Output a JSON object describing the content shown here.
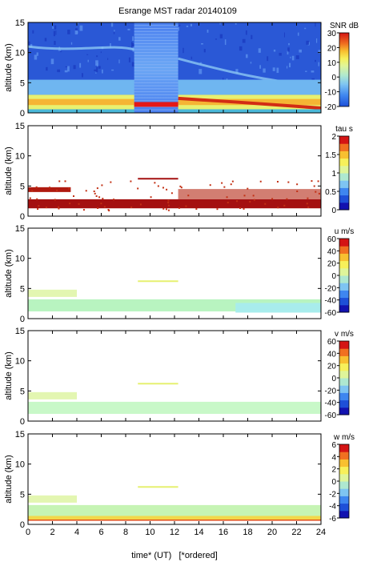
{
  "chart_data": {
    "title": "Esrange MST radar 20140109",
    "xlabel": "time* (UT)   [*ordered]",
    "xlim": [
      0,
      24
    ],
    "xticks": [
      0,
      2,
      4,
      6,
      8,
      10,
      12,
      14,
      16,
      18,
      20,
      22,
      24
    ],
    "panels": [
      {
        "type": "heatmap",
        "ylabel": "altitude (km)",
        "ylim": [
          0,
          15
        ],
        "yticks": [
          0,
          5,
          10,
          15
        ],
        "colorbar_label": "SNR dB",
        "colorbar_ticks": [
          -20,
          -10,
          0,
          10,
          20,
          30
        ],
        "colorbar_range": [
          -20,
          30
        ],
        "gap_interval_hours": [
          8.7,
          12.3
        ]
      },
      {
        "type": "heatmap",
        "ylabel": "altitude (km)",
        "ylim": [
          0,
          15
        ],
        "yticks": [
          0,
          5,
          10,
          15
        ],
        "colorbar_label": "tau s",
        "colorbar_ticks": [
          0,
          0.5,
          1,
          1.5,
          2
        ],
        "colorbar_range": [
          0,
          2
        ]
      },
      {
        "type": "heatmap",
        "ylabel": "altitude (km)",
        "ylim": [
          0,
          15
        ],
        "yticks": [
          0,
          5,
          10,
          15
        ],
        "colorbar_label": "u m/s",
        "colorbar_ticks": [
          -60,
          -40,
          -20,
          0,
          20,
          40,
          60
        ],
        "colorbar_range": [
          -60,
          60
        ]
      },
      {
        "type": "heatmap",
        "ylabel": "altitude (km)",
        "ylim": [
          0,
          15
        ],
        "yticks": [
          0,
          5,
          10,
          15
        ],
        "colorbar_label": "v m/s",
        "colorbar_ticks": [
          -60,
          -40,
          -20,
          0,
          20,
          40,
          60
        ],
        "colorbar_range": [
          -60,
          60
        ]
      },
      {
        "type": "heatmap",
        "ylabel": "altitude (km)",
        "ylim": [
          0,
          15
        ],
        "yticks": [
          0,
          5,
          10,
          15
        ],
        "colorbar_label": "w m/s",
        "colorbar_ticks": [
          -6,
          -4,
          -2,
          0,
          2,
          4,
          6
        ],
        "colorbar_range": [
          -6,
          6
        ]
      }
    ]
  }
}
